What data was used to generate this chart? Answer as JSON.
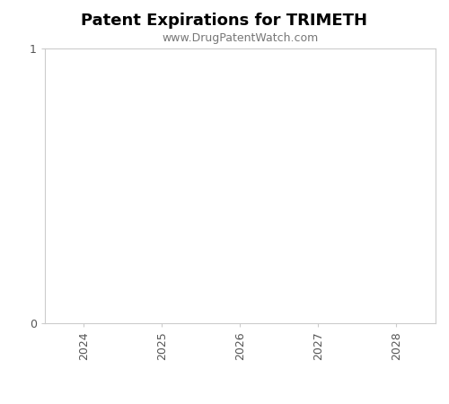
{
  "title": "Patent Expirations for TRIMETH",
  "subtitle": "www.DrugPatentWatch.com",
  "title_fontsize": 13,
  "subtitle_fontsize": 9,
  "title_fontweight": "bold",
  "xlabel": "",
  "ylabel": "",
  "xlim": [
    2023.5,
    2028.5
  ],
  "ylim": [
    0,
    1
  ],
  "xticks": [
    2024,
    2025,
    2026,
    2027,
    2028
  ],
  "yticks": [
    0,
    1
  ],
  "background_color": "#ffffff",
  "axes_facecolor": "#ffffff",
  "tick_label_color": "#555555",
  "spine_color": "#cccccc",
  "subtitle_color": "#777777"
}
